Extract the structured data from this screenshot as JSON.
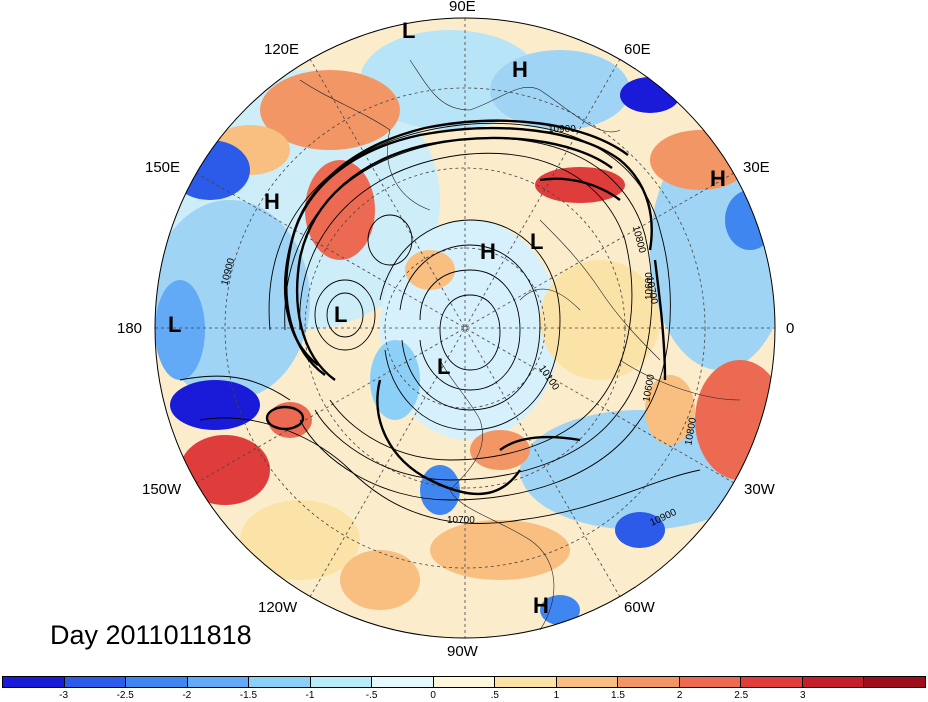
{
  "title": "Day 2011011818",
  "longitude_labels": [
    {
      "text": "90E",
      "pos": "top"
    },
    {
      "text": "60E",
      "pos": "upper-right"
    },
    {
      "text": "30E",
      "pos": "right-upper"
    },
    {
      "text": "0",
      "pos": "right"
    },
    {
      "text": "30W",
      "pos": "right-lower"
    },
    {
      "text": "60W",
      "pos": "lower-right"
    },
    {
      "text": "90W",
      "pos": "bottom"
    },
    {
      "text": "120W",
      "pos": "lower-left"
    },
    {
      "text": "150W",
      "pos": "left-lower"
    },
    {
      "text": "180",
      "pos": "left"
    },
    {
      "text": "150E",
      "pos": "left-upper"
    },
    {
      "text": "120E",
      "pos": "upper-left"
    }
  ],
  "pressure_centers": [
    "L",
    "H",
    "H",
    "H",
    "H",
    "L",
    "L",
    "L",
    "L",
    "H"
  ],
  "contour_labels": [
    "10900",
    "10900",
    "10800",
    "10700",
    "10700",
    "10600",
    "10600",
    "10100",
    "10800",
    "10900"
  ],
  "colorbar": {
    "colors": [
      "#1a1ad9",
      "#2b5be8",
      "#3f86f0",
      "#62aaf5",
      "#8dd0f7",
      "#b8ecf9",
      "#e3f9fb",
      "#fdf8dc",
      "#fbe3a8",
      "#f8bf80",
      "#f39666",
      "#ec6a52",
      "#df3c3c",
      "#c41e2d",
      "#9e0d1e"
    ],
    "tick_labels": [
      "-3",
      "-2.5",
      "-2",
      "-1.5",
      "-1",
      "-.5",
      "0",
      ".5",
      "1",
      "1.5",
      "2",
      "2.5",
      "3"
    ]
  }
}
